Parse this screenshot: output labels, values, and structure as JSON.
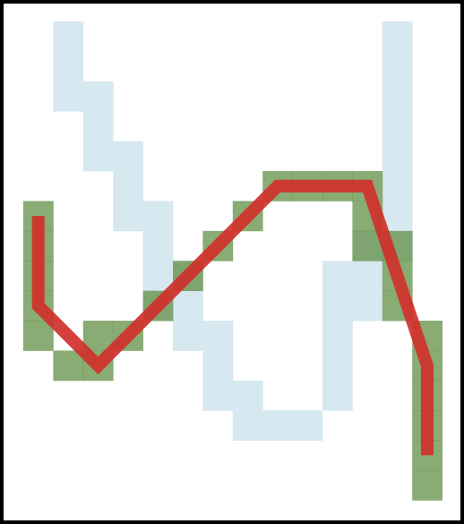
{
  "puzzle": {
    "grid": {
      "cols": 15,
      "rows": 17
    },
    "colors": {
      "background": "#ffffff",
      "frame": "#000000",
      "hint_cell": "#d6e8f0",
      "player_cell": "#5b8a3e",
      "player_cell_opacity": 0.72,
      "path_line": "#d0302a",
      "path_line_opacity": 0.92
    },
    "hint_cells": [
      [
        1,
        0
      ],
      [
        1,
        1
      ],
      [
        1,
        2
      ],
      [
        2,
        2
      ],
      [
        2,
        3
      ],
      [
        2,
        4
      ],
      [
        3,
        4
      ],
      [
        3,
        5
      ],
      [
        3,
        6
      ],
      [
        4,
        6
      ],
      [
        4,
        7
      ],
      [
        4,
        8
      ],
      [
        4,
        9
      ],
      [
        5,
        8
      ],
      [
        5,
        9
      ],
      [
        5,
        10
      ],
      [
        6,
        10
      ],
      [
        6,
        11
      ],
      [
        6,
        12
      ],
      [
        7,
        12
      ],
      [
        7,
        13
      ],
      [
        8,
        13
      ],
      [
        9,
        13
      ],
      [
        10,
        8
      ],
      [
        10,
        9
      ],
      [
        10,
        10
      ],
      [
        10,
        11
      ],
      [
        10,
        12
      ],
      [
        11,
        7
      ],
      [
        11,
        8
      ],
      [
        11,
        9
      ],
      [
        12,
        0
      ],
      [
        12,
        1
      ],
      [
        12,
        2
      ],
      [
        12,
        3
      ],
      [
        12,
        4
      ],
      [
        12,
        5
      ],
      [
        12,
        6
      ],
      [
        12,
        7
      ]
    ],
    "player_cells": [
      [
        0,
        6
      ],
      [
        0,
        7
      ],
      [
        0,
        8
      ],
      [
        0,
        9
      ],
      [
        0,
        10
      ],
      [
        1,
        11
      ],
      [
        2,
        10
      ],
      [
        2,
        11
      ],
      [
        3,
        10
      ],
      [
        4,
        9
      ],
      [
        5,
        8
      ],
      [
        6,
        7
      ],
      [
        7,
        6
      ],
      [
        8,
        5
      ],
      [
        9,
        5
      ],
      [
        10,
        5
      ],
      [
        11,
        5
      ],
      [
        11,
        6
      ],
      [
        11,
        7
      ],
      [
        12,
        7
      ],
      [
        12,
        8
      ],
      [
        12,
        9
      ],
      [
        13,
        10
      ],
      [
        13,
        11
      ],
      [
        13,
        12
      ],
      [
        13,
        13
      ],
      [
        13,
        14
      ],
      [
        13,
        15
      ]
    ],
    "path": [
      [
        0.5,
        6.5
      ],
      [
        0.5,
        9.5
      ],
      [
        2.5,
        11.5
      ],
      [
        8.5,
        5.5
      ],
      [
        11.5,
        5.5
      ],
      [
        13.5,
        11.5
      ],
      [
        13.5,
        14.5
      ]
    ]
  }
}
